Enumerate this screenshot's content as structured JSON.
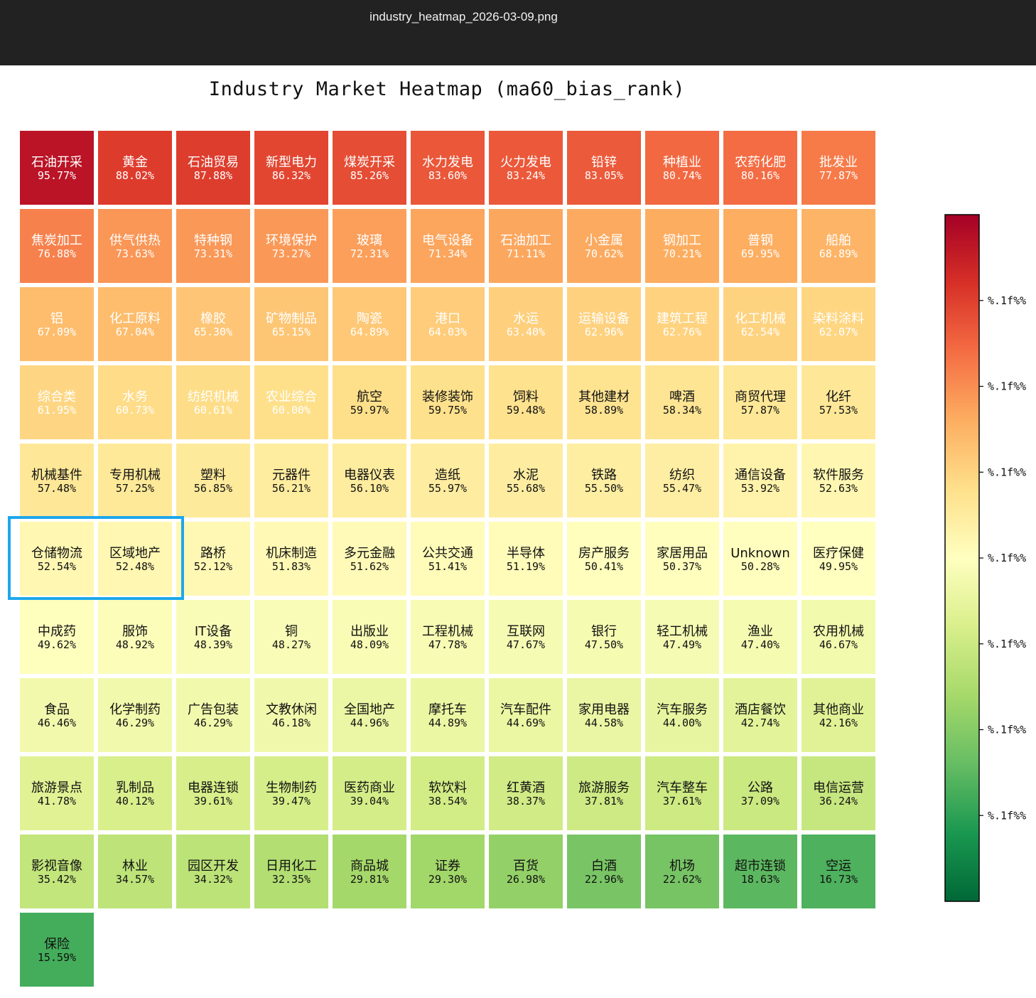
{
  "viewer": {
    "filename": "industry_heatmap_2026-03-09.png"
  },
  "colors": {
    "viewer_bar": "#222222",
    "highlight": "#1ea7ec",
    "grid_gap": "#ffffff"
  },
  "chart_data": {
    "type": "heatmap",
    "title": "Industry Market Heatmap (ma60_bias_rank)",
    "columns": 11,
    "value_range": [
      0,
      100
    ],
    "colormap": "RdYlGn_r",
    "highlighted": [
      "仓储物流",
      "区域地产"
    ],
    "cells": [
      {
        "name": "石油开采",
        "value": 95.77,
        "label": "95.77%"
      },
      {
        "name": "黄金",
        "value": 88.02,
        "label": "88.02%"
      },
      {
        "name": "石油贸易",
        "value": 87.88,
        "label": "87.88%"
      },
      {
        "name": "新型电力",
        "value": 86.32,
        "label": "86.32%"
      },
      {
        "name": "煤炭开采",
        "value": 85.26,
        "label": "85.26%"
      },
      {
        "name": "水力发电",
        "value": 83.6,
        "label": "83.60%"
      },
      {
        "name": "火力发电",
        "value": 83.24,
        "label": "83.24%"
      },
      {
        "name": "铅锌",
        "value": 83.05,
        "label": "83.05%"
      },
      {
        "name": "种植业",
        "value": 80.74,
        "label": "80.74%"
      },
      {
        "name": "农药化肥",
        "value": 80.16,
        "label": "80.16%"
      },
      {
        "name": "批发业",
        "value": 77.87,
        "label": "77.87%"
      },
      {
        "name": "焦炭加工",
        "value": 76.88,
        "label": "76.88%"
      },
      {
        "name": "供气供热",
        "value": 73.63,
        "label": "73.63%"
      },
      {
        "name": "特种钢",
        "value": 73.31,
        "label": "73.31%"
      },
      {
        "name": "环境保护",
        "value": 73.27,
        "label": "73.27%"
      },
      {
        "name": "玻璃",
        "value": 72.31,
        "label": "72.31%"
      },
      {
        "name": "电气设备",
        "value": 71.34,
        "label": "71.34%"
      },
      {
        "name": "石油加工",
        "value": 71.11,
        "label": "71.11%"
      },
      {
        "name": "小金属",
        "value": 70.62,
        "label": "70.62%"
      },
      {
        "name": "钢加工",
        "value": 70.21,
        "label": "70.21%"
      },
      {
        "name": "普钢",
        "value": 69.95,
        "label": "69.95%"
      },
      {
        "name": "船舶",
        "value": 68.89,
        "label": "68.89%"
      },
      {
        "name": "铝",
        "value": 67.09,
        "label": "67.09%"
      },
      {
        "name": "化工原料",
        "value": 67.04,
        "label": "67.04%"
      },
      {
        "name": "橡胶",
        "value": 65.3,
        "label": "65.30%"
      },
      {
        "name": "矿物制品",
        "value": 65.15,
        "label": "65.15%"
      },
      {
        "name": "陶瓷",
        "value": 64.89,
        "label": "64.89%"
      },
      {
        "name": "港口",
        "value": 64.03,
        "label": "64.03%"
      },
      {
        "name": "水运",
        "value": 63.4,
        "label": "63.40%"
      },
      {
        "name": "运输设备",
        "value": 62.96,
        "label": "62.96%"
      },
      {
        "name": "建筑工程",
        "value": 62.76,
        "label": "62.76%"
      },
      {
        "name": "化工机械",
        "value": 62.54,
        "label": "62.54%"
      },
      {
        "name": "染料涂料",
        "value": 62.07,
        "label": "62.07%"
      },
      {
        "name": "综合类",
        "value": 61.95,
        "label": "61.95%"
      },
      {
        "name": "水务",
        "value": 60.73,
        "label": "60.73%"
      },
      {
        "name": "纺织机械",
        "value": 60.61,
        "label": "60.61%"
      },
      {
        "name": "农业综合",
        "value": 60.0,
        "label": "60.00%"
      },
      {
        "name": "航空",
        "value": 59.97,
        "label": "59.97%"
      },
      {
        "name": "装修装饰",
        "value": 59.75,
        "label": "59.75%"
      },
      {
        "name": "饲料",
        "value": 59.48,
        "label": "59.48%"
      },
      {
        "name": "其他建材",
        "value": 58.89,
        "label": "58.89%"
      },
      {
        "name": "啤酒",
        "value": 58.34,
        "label": "58.34%"
      },
      {
        "name": "商贸代理",
        "value": 57.87,
        "label": "57.87%"
      },
      {
        "name": "化纤",
        "value": 57.53,
        "label": "57.53%"
      },
      {
        "name": "机械基件",
        "value": 57.48,
        "label": "57.48%"
      },
      {
        "name": "专用机械",
        "value": 57.25,
        "label": "57.25%"
      },
      {
        "name": "塑料",
        "value": 56.85,
        "label": "56.85%"
      },
      {
        "name": "元器件",
        "value": 56.21,
        "label": "56.21%"
      },
      {
        "name": "电器仪表",
        "value": 56.1,
        "label": "56.10%"
      },
      {
        "name": "造纸",
        "value": 55.97,
        "label": "55.97%"
      },
      {
        "name": "水泥",
        "value": 55.68,
        "label": "55.68%"
      },
      {
        "name": "铁路",
        "value": 55.5,
        "label": "55.50%"
      },
      {
        "name": "纺织",
        "value": 55.47,
        "label": "55.47%"
      },
      {
        "name": "通信设备",
        "value": 53.92,
        "label": "53.92%"
      },
      {
        "name": "软件服务",
        "value": 52.63,
        "label": "52.63%"
      },
      {
        "name": "仓储物流",
        "value": 52.54,
        "label": "52.54%"
      },
      {
        "name": "区域地产",
        "value": 52.48,
        "label": "52.48%"
      },
      {
        "name": "路桥",
        "value": 52.12,
        "label": "52.12%"
      },
      {
        "name": "机床制造",
        "value": 51.83,
        "label": "51.83%"
      },
      {
        "name": "多元金融",
        "value": 51.62,
        "label": "51.62%"
      },
      {
        "name": "公共交通",
        "value": 51.41,
        "label": "51.41%"
      },
      {
        "name": "半导体",
        "value": 51.19,
        "label": "51.19%"
      },
      {
        "name": "房产服务",
        "value": 50.41,
        "label": "50.41%"
      },
      {
        "name": "家居用品",
        "value": 50.37,
        "label": "50.37%"
      },
      {
        "name": "Unknown",
        "value": 50.28,
        "label": "50.28%"
      },
      {
        "name": "医疗保健",
        "value": 49.95,
        "label": "49.95%"
      },
      {
        "name": "中成药",
        "value": 49.62,
        "label": "49.62%"
      },
      {
        "name": "服饰",
        "value": 48.92,
        "label": "48.92%"
      },
      {
        "name": "IT设备",
        "value": 48.39,
        "label": "48.39%"
      },
      {
        "name": "铜",
        "value": 48.27,
        "label": "48.27%"
      },
      {
        "name": "出版业",
        "value": 48.09,
        "label": "48.09%"
      },
      {
        "name": "工程机械",
        "value": 47.78,
        "label": "47.78%"
      },
      {
        "name": "互联网",
        "value": 47.67,
        "label": "47.67%"
      },
      {
        "name": "银行",
        "value": 47.5,
        "label": "47.50%"
      },
      {
        "name": "轻工机械",
        "value": 47.49,
        "label": "47.49%"
      },
      {
        "name": "渔业",
        "value": 47.4,
        "label": "47.40%"
      },
      {
        "name": "农用机械",
        "value": 46.67,
        "label": "46.67%"
      },
      {
        "name": "食品",
        "value": 46.46,
        "label": "46.46%"
      },
      {
        "name": "化学制药",
        "value": 46.29,
        "label": "46.29%"
      },
      {
        "name": "广告包装",
        "value": 46.29,
        "label": "46.29%"
      },
      {
        "name": "文教休闲",
        "value": 46.18,
        "label": "46.18%"
      },
      {
        "name": "全国地产",
        "value": 44.96,
        "label": "44.96%"
      },
      {
        "name": "摩托车",
        "value": 44.89,
        "label": "44.89%"
      },
      {
        "name": "汽车配件",
        "value": 44.69,
        "label": "44.69%"
      },
      {
        "name": "家用电器",
        "value": 44.58,
        "label": "44.58%"
      },
      {
        "name": "汽车服务",
        "value": 44.0,
        "label": "44.00%"
      },
      {
        "name": "酒店餐饮",
        "value": 42.74,
        "label": "42.74%"
      },
      {
        "name": "其他商业",
        "value": 42.16,
        "label": "42.16%"
      },
      {
        "name": "旅游景点",
        "value": 41.78,
        "label": "41.78%"
      },
      {
        "name": "乳制品",
        "value": 40.12,
        "label": "40.12%"
      },
      {
        "name": "电器连锁",
        "value": 39.61,
        "label": "39.61%"
      },
      {
        "name": "生物制药",
        "value": 39.47,
        "label": "39.47%"
      },
      {
        "name": "医药商业",
        "value": 39.04,
        "label": "39.04%"
      },
      {
        "name": "软饮料",
        "value": 38.54,
        "label": "38.54%"
      },
      {
        "name": "红黄酒",
        "value": 38.37,
        "label": "38.37%"
      },
      {
        "name": "旅游服务",
        "value": 37.81,
        "label": "37.81%"
      },
      {
        "name": "汽车整车",
        "value": 37.61,
        "label": "37.61%"
      },
      {
        "name": "公路",
        "value": 37.09,
        "label": "37.09%"
      },
      {
        "name": "电信运营",
        "value": 36.24,
        "label": "36.24%"
      },
      {
        "name": "影视音像",
        "value": 35.42,
        "label": "35.42%"
      },
      {
        "name": "林业",
        "value": 34.57,
        "label": "34.57%"
      },
      {
        "name": "园区开发",
        "value": 34.32,
        "label": "34.32%"
      },
      {
        "name": "日用化工",
        "value": 32.35,
        "label": "32.35%"
      },
      {
        "name": "商品城",
        "value": 29.81,
        "label": "29.81%"
      },
      {
        "name": "证券",
        "value": 29.3,
        "label": "29.30%"
      },
      {
        "name": "百货",
        "value": 26.98,
        "label": "26.98%"
      },
      {
        "name": "白酒",
        "value": 22.96,
        "label": "22.96%"
      },
      {
        "name": "机场",
        "value": 22.62,
        "label": "22.62%"
      },
      {
        "name": "超市连锁",
        "value": 18.63,
        "label": "18.63%"
      },
      {
        "name": "空运",
        "value": 16.73,
        "label": "16.73%"
      },
      {
        "name": "保险",
        "value": 15.59,
        "label": "15.59%"
      }
    ],
    "colorbar": {
      "range": [
        0,
        100
      ],
      "ticks": [
        {
          "value": 87.5,
          "label": "%.1f%%"
        },
        {
          "value": 75,
          "label": "%.1f%%"
        },
        {
          "value": 62.5,
          "label": "%.1f%%"
        },
        {
          "value": 50,
          "label": "%.1f%%"
        },
        {
          "value": 37.5,
          "label": "%.1f%%"
        },
        {
          "value": 25,
          "label": "%.1f%%"
        },
        {
          "value": 12.5,
          "label": "%.1f%%"
        }
      ]
    }
  }
}
